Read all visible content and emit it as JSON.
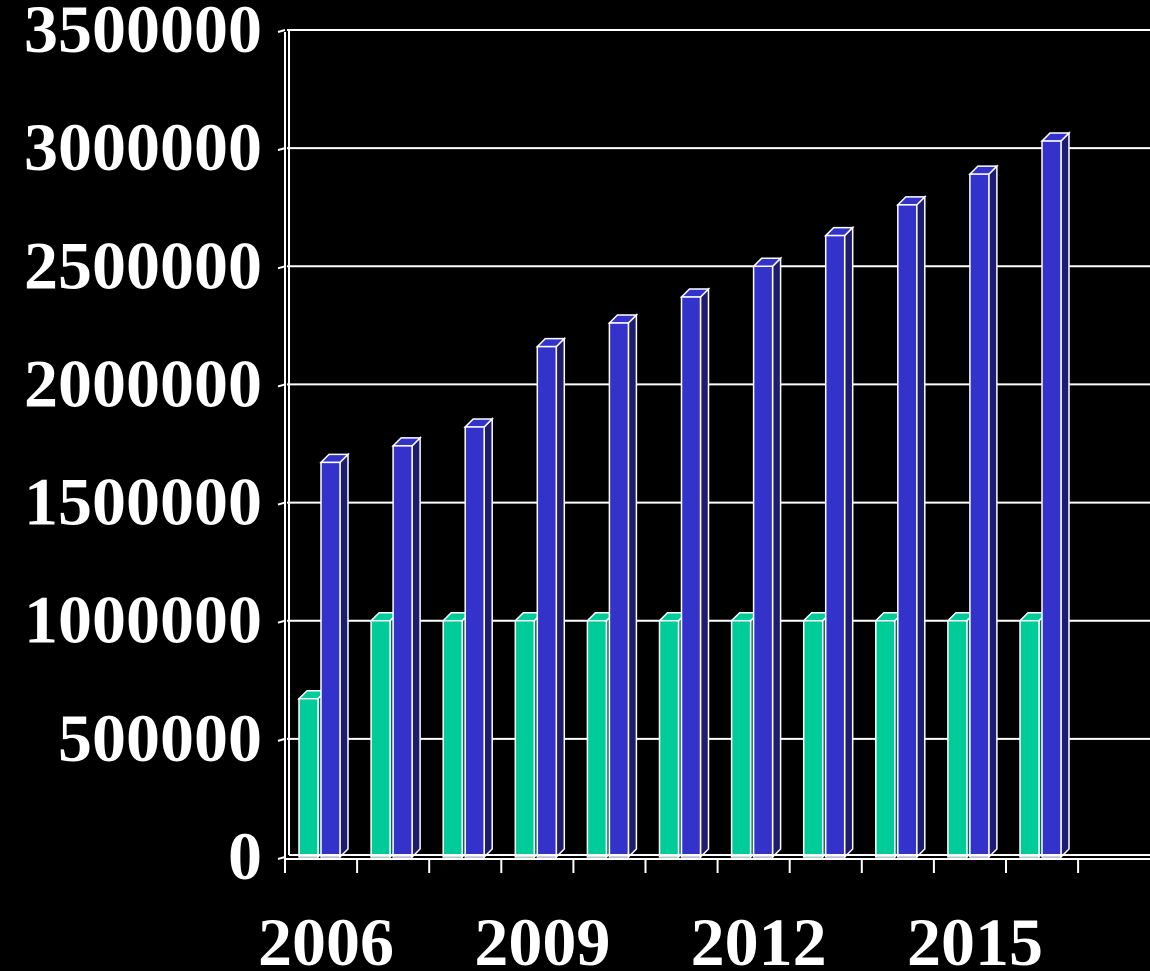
{
  "chart_data": {
    "type": "bar",
    "x": [
      2006,
      2007,
      2008,
      2009,
      2010,
      2011,
      2012,
      2013,
      2014,
      2015,
      2016
    ],
    "xtick_labels": [
      "2006",
      "2009",
      "2012",
      "2015"
    ],
    "xtick_values": [
      2006,
      2009,
      2012,
      2015
    ],
    "yticks": [
      "0",
      "500000",
      "1000000",
      "1500000",
      "2000000",
      "2500000",
      "3000000",
      "3500000"
    ],
    "ylim": [
      0,
      3500000
    ],
    "grid": true,
    "legend": "none",
    "series": [
      {
        "color": "#00cc99",
        "values": [
          670000,
          1000000,
          1000000,
          1000000,
          1000000,
          1000000,
          1000000,
          1000000,
          1000000,
          1000000,
          1000000
        ]
      },
      {
        "color": "#3333cc",
        "values": [
          1670000,
          1740000,
          1820000,
          2160000,
          2260000,
          2370000,
          2500000,
          2630000,
          2760000,
          2890000,
          3030000
        ]
      }
    ],
    "background": "#000000",
    "gridline_color": "#ffffff"
  }
}
